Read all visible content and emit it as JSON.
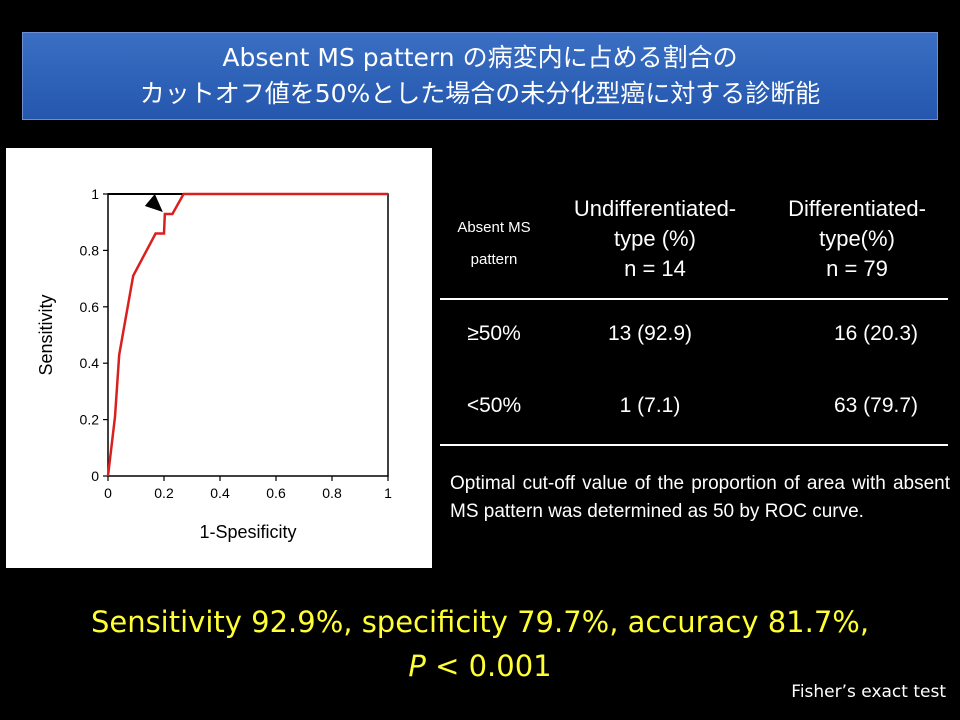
{
  "title": {
    "line1": "Absent MS pattern の病変内に占める割合の",
    "line2": "カットオフ値を50%とした場合の未分化型癌に対する診断能"
  },
  "chart_data": {
    "type": "line",
    "xlabel": "1-Spesificity",
    "ylabel": "Sensitivity",
    "xlim": [
      0,
      1
    ],
    "ylim": [
      0,
      1
    ],
    "xticks": [
      "0",
      "0.2",
      "0.4",
      "0.6",
      "0.8",
      "1"
    ],
    "yticks": [
      "0",
      "0.2",
      "0.4",
      "0.6",
      "0.8",
      "1"
    ],
    "grid": false,
    "series": [
      {
        "color": "#d9201e",
        "x": [
          0,
          0.025,
          0.04,
          0.09,
          0.17,
          0.2,
          0.203,
          0.23,
          0.27,
          1
        ],
        "y": [
          0,
          0.21,
          0.43,
          0.71,
          0.86,
          0.86,
          0.929,
          0.929,
          1,
          1
        ]
      }
    ],
    "reference_line": {
      "color": "#000000",
      "x": [
        0,
        1
      ],
      "y": [
        1,
        1
      ]
    },
    "annotation": {
      "type": "arrow",
      "x": 0.203,
      "y": 0.929
    }
  },
  "table": {
    "header": {
      "col0": "Absent MS pattern",
      "col1_lines": [
        "Undifferentiated-",
        "type (%)",
        "n = 14"
      ],
      "col2_lines": [
        "Differentiated-",
        "type(%)",
        "n = 79"
      ]
    },
    "rows": [
      {
        "label": "≥50%",
        "undiff": "13 (92.9)",
        "diff": "16 (20.3)"
      },
      {
        "label": "<50%",
        "undiff": "1 (7.1)",
        "diff": "63 (79.7)"
      }
    ]
  },
  "note": "Optimal cut-off value of the proportion of area with absent MS pattern was determined as 50 by ROC curve.",
  "summary": {
    "line1": "Sensitivity 92.9%, specificity 79.7%, accuracy 81.7%,",
    "p_label": "P",
    "p_value": " < 0.001"
  },
  "footnote": "Fisher’s exact test"
}
